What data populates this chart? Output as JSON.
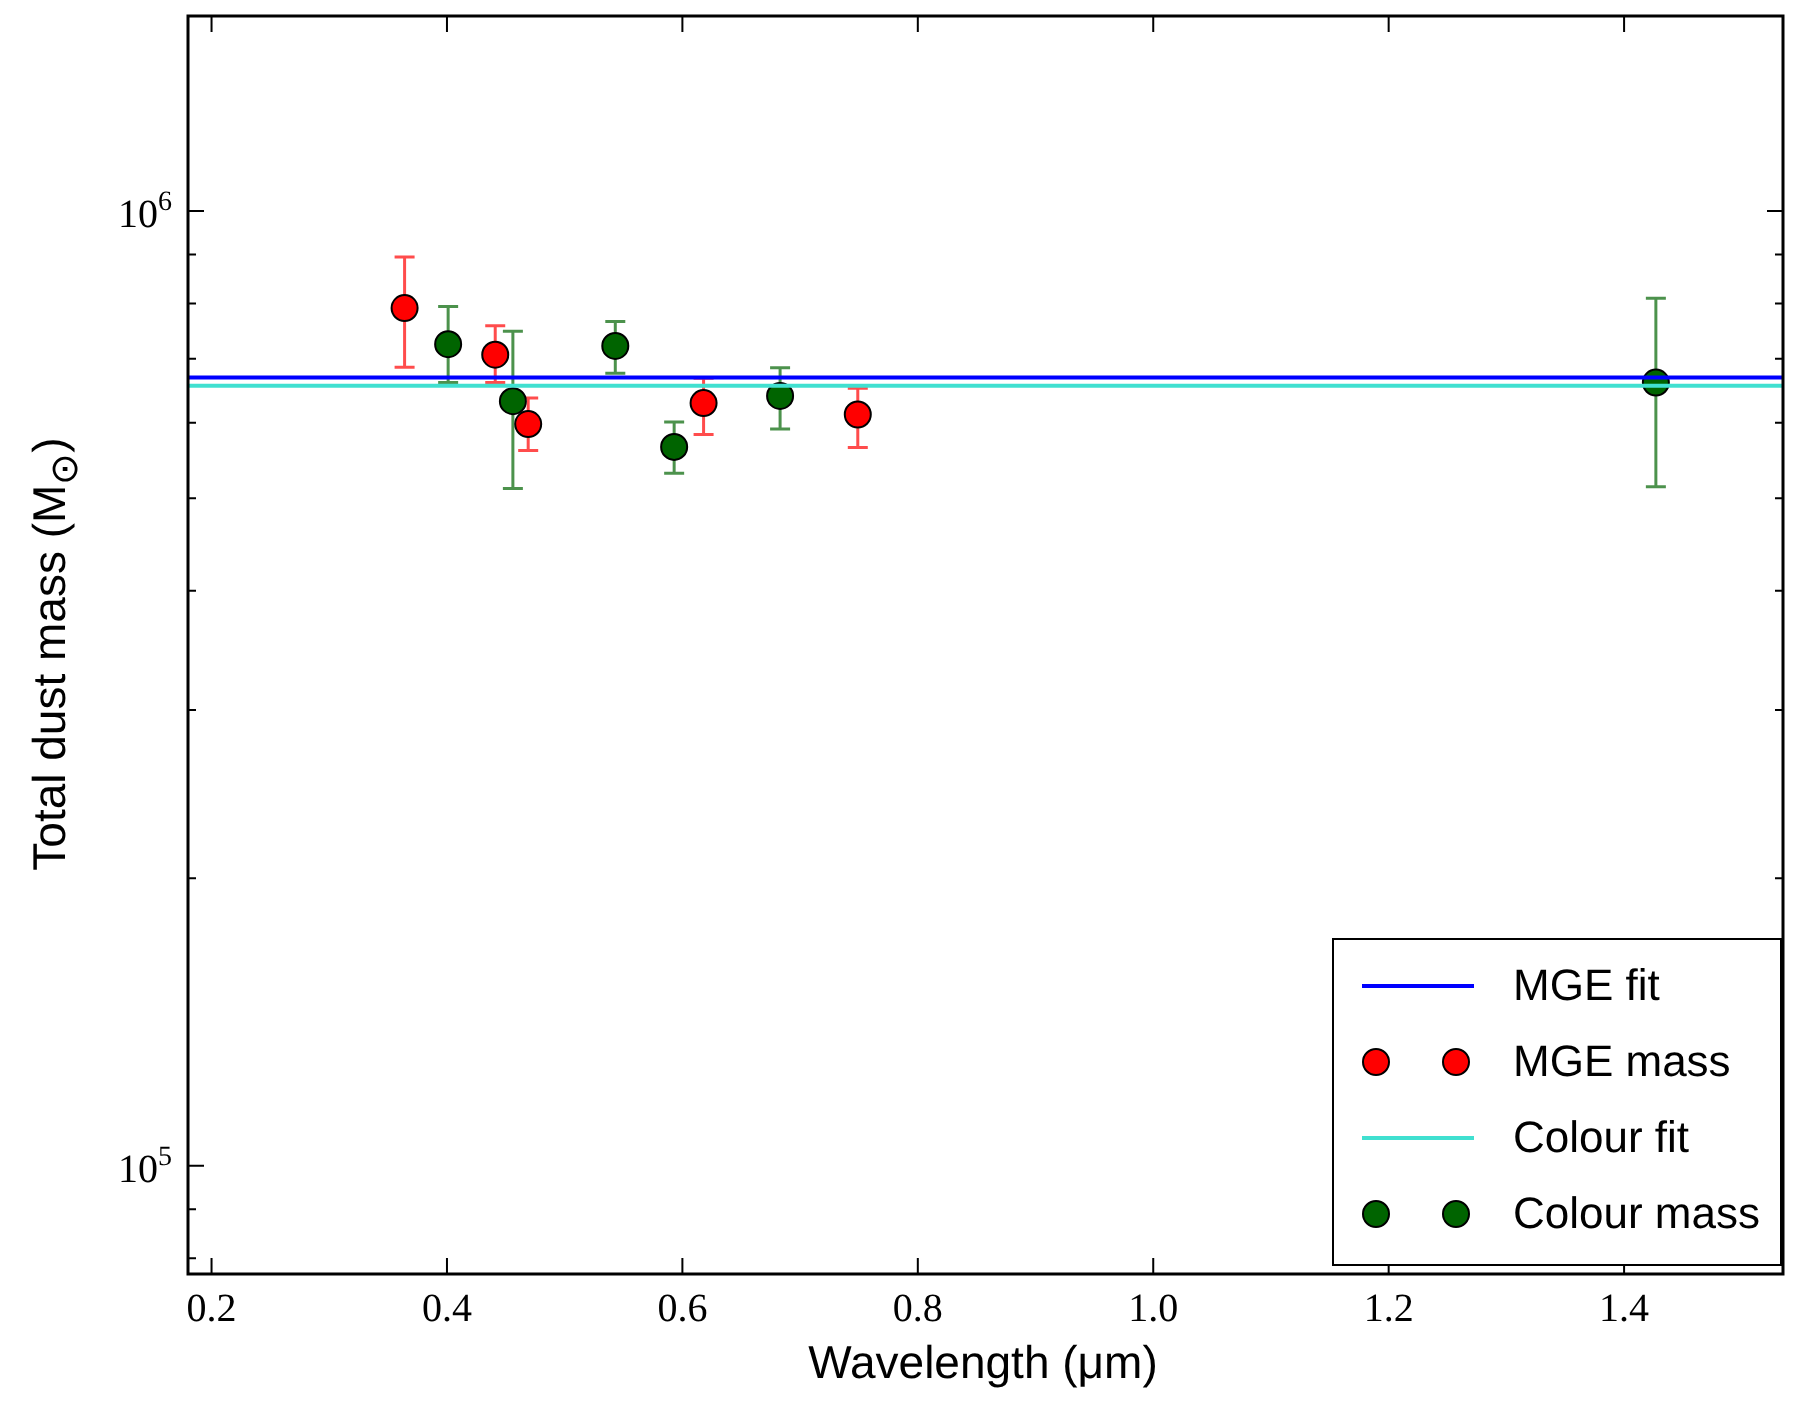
{
  "chart_data": {
    "type": "scatter",
    "xlabel": "Wavelength (μm)",
    "ylabel": "Total dust mass (M$_{⊙}$)",
    "log": "y",
    "grid": false,
    "legend": "bottom right",
    "xlim": [
      0.18,
      1.535
    ],
    "ylim": [
      77000,
      1600000
    ],
    "xticks": [
      0.2,
      0.4,
      0.6,
      0.8,
      {
        "value": 1,
        "label": "1.0"
      },
      1.2,
      1.4
    ],
    "yticks": [
      {
        "value": 80000,
        "label": null
      },
      {
        "value": 90000,
        "label": null
      },
      {
        "value": 100000,
        "label": "10$^{5}$"
      },
      {
        "value": 200000,
        "label": null
      },
      {
        "value": 300000,
        "label": null
      },
      {
        "value": 400000,
        "label": null
      },
      {
        "value": 500000,
        "label": null
      },
      {
        "value": 600000,
        "label": null
      },
      {
        "value": 700000,
        "label": null
      },
      {
        "value": 800000,
        "label": null
      },
      {
        "value": 900000,
        "label": null
      },
      {
        "value": 1000000,
        "label": "10$^{6}$"
      }
    ],
    "series": [
      {
        "name": "MGE fit",
        "type": "line",
        "color": "#0000ff",
        "marker": "none",
        "x": [
          0.18,
          1.535
        ],
        "values": [
          669000,
          669000
        ]
      },
      {
        "name": "MGE mass",
        "color": "#ff0000",
        "marker": "circle",
        "x": [
          0.364,
          0.441,
          0.469,
          0.618,
          0.749
        ],
        "values": [
          791000,
          707000,
          598000,
          629000,
          612000
        ],
        "errors": [
          [
            686000,
            895000
          ],
          [
            661000,
            758000
          ],
          [
            561000,
            637000
          ],
          [
            583000,
            668000
          ],
          [
            565000,
            652000
          ]
        ]
      },
      {
        "name": "Colour fit",
        "type": "line",
        "color": "#40e0d0",
        "marker": "none",
        "x": [
          0.18,
          1.535
        ],
        "values": [
          656000,
          656000
        ]
      },
      {
        "name": "Colour mass",
        "color": "#006400",
        "marker": "circle",
        "x": [
          0.401,
          0.456,
          0.543,
          0.593,
          0.683,
          1.427
        ],
        "values": [
          725000,
          632000,
          722000,
          566000,
          640000,
          661000
        ],
        "errors": [
          [
            661000,
            794000
          ],
          [
            512000,
            748000
          ],
          [
            676000,
            766000
          ],
          [
            531000,
            601000
          ],
          [
            591000,
            685000
          ],
          [
            514000,
            810000
          ]
        ]
      }
    ]
  }
}
